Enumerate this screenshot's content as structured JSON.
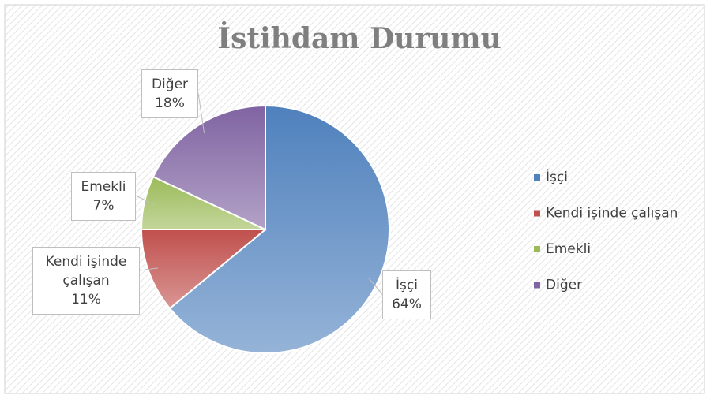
{
  "chart_data": {
    "type": "pie",
    "title": "İstihdam Durumu",
    "categories": [
      "İşçi",
      "Kendi işinde çalışan",
      "Emekli",
      "Diğer"
    ],
    "values": [
      64,
      11,
      7,
      18
    ],
    "value_labels": [
      "64%",
      "11%",
      "7%",
      "18%"
    ],
    "colors": [
      "#4f81bd",
      "#c0504d",
      "#9bbb59",
      "#8064a2"
    ],
    "legend": "right"
  }
}
